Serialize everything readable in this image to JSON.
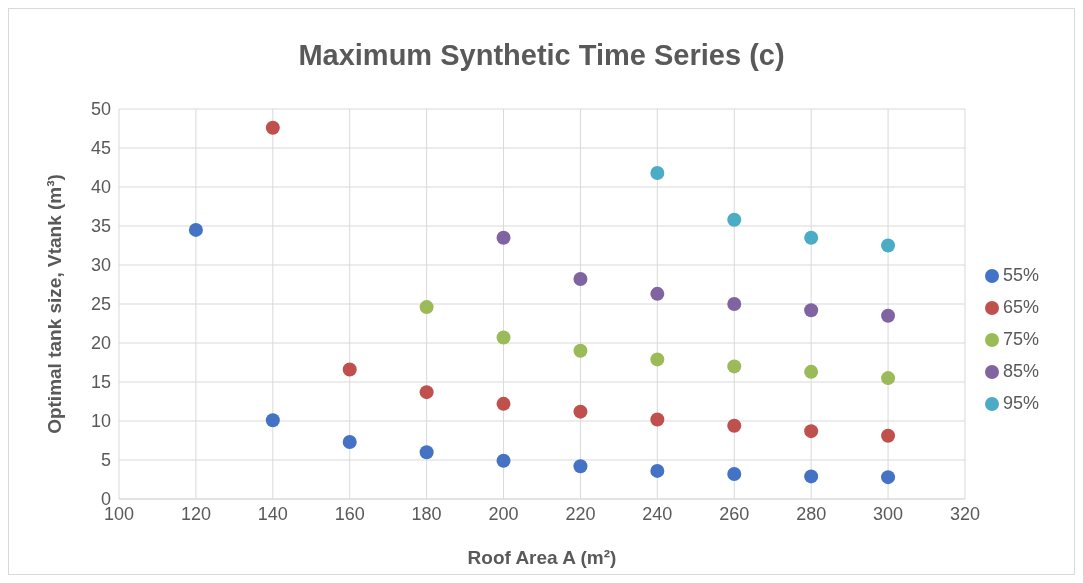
{
  "chart_data": {
    "type": "scatter",
    "title": "Maximum Synthetic Time Series (c)",
    "xlabel": "Roof Area A (m²)",
    "ylabel": "Optimal tank size, Vtank (m³)",
    "series": [
      {
        "name": "55%",
        "color": "#4472c4",
        "x": [
          120,
          140,
          160,
          180,
          200,
          220,
          240,
          260,
          280,
          300
        ],
        "values": [
          34.5,
          10.1,
          7.3,
          6.0,
          4.9,
          4.2,
          3.6,
          3.2,
          2.9,
          2.8
        ]
      },
      {
        "name": "65%",
        "color": "#c0504d",
        "x": [
          140,
          160,
          180,
          200,
          220,
          240,
          260,
          280,
          300
        ],
        "values": [
          47.6,
          16.6,
          13.7,
          12.2,
          11.2,
          10.2,
          9.4,
          8.7,
          8.1
        ]
      },
      {
        "name": "75%",
        "color": "#9bbb59",
        "x": [
          180,
          200,
          220,
          240,
          260,
          280,
          300
        ],
        "values": [
          24.6,
          20.7,
          19.0,
          17.9,
          17.0,
          16.3,
          15.5
        ]
      },
      {
        "name": "85%",
        "color": "#8064a2",
        "x": [
          200,
          220,
          240,
          260,
          280,
          300
        ],
        "values": [
          33.5,
          28.2,
          26.3,
          25.0,
          24.2,
          23.5
        ]
      },
      {
        "name": "95%",
        "color": "#4bacc6",
        "x": [
          240,
          260,
          280,
          300
        ],
        "values": [
          41.8,
          35.8,
          33.5,
          32.5
        ]
      }
    ],
    "xlim": [
      100,
      320
    ],
    "xticks": [
      100,
      120,
      140,
      160,
      180,
      200,
      220,
      240,
      260,
      280,
      300,
      320
    ],
    "ylim": [
      0,
      50
    ],
    "yticks": [
      0,
      5,
      10,
      15,
      20,
      25,
      30,
      35,
      40,
      45,
      50
    ],
    "grid": true,
    "legend": "right",
    "marker": "circle"
  }
}
